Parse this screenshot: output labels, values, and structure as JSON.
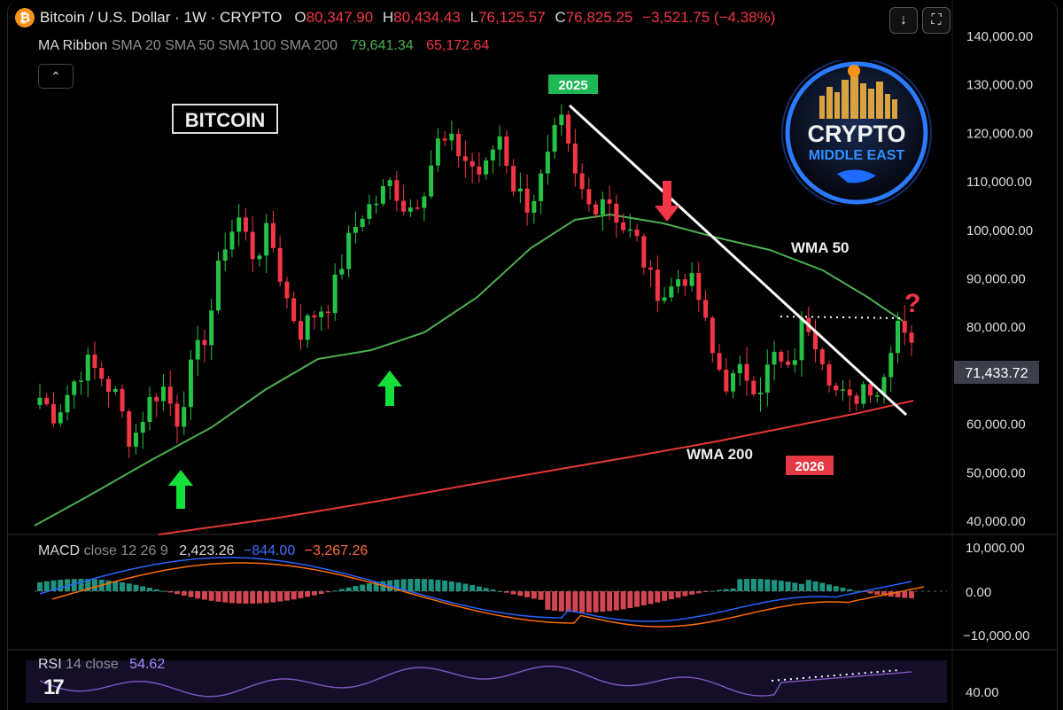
{
  "header": {
    "symbol_title": "Bitcoin / U.S. Dollar · 1W · CRYPTO",
    "btc_symbol": "₿",
    "ohlc": [
      {
        "key": "O",
        "value": "80,347.90"
      },
      {
        "key": "H",
        "value": "80,434.43"
      },
      {
        "key": "L",
        "value": "76,125.57"
      },
      {
        "key": "C",
        "value": "76,825.25"
      }
    ],
    "change": "−3,521.75 (−4.38%)",
    "download_icon": "↓",
    "fullscreen_icon": "⛶"
  },
  "ma_ribbon": {
    "label": "MA Ribbon",
    "params": "SMA 20 SMA 50 SMA 100 SMA 200",
    "value_green": "79,641.34",
    "value_red": "65,172.64"
  },
  "collapse_icon": "⌃",
  "macd": {
    "label": "MACD",
    "params": "close 12 26 9",
    "v1": "2,423.26",
    "v2": "−844.00",
    "v3": "−3,267.26"
  },
  "rsi": {
    "label": "RSI",
    "params": "14 close",
    "value": "54.62"
  },
  "tv_logo": "17",
  "logo": {
    "line1": "CRYPTO",
    "line2": "MIDDLE EAST"
  },
  "colors": {
    "up": "#26c245",
    "down": "#f23645",
    "wma50": "#4caf50",
    "wma200": "#e53935",
    "macd": "#2962ff",
    "signal": "#ff6d00",
    "rsi": "#7e57c2"
  },
  "chart_data": {
    "type": "candlestick",
    "timeframe": "1W",
    "price_axis": {
      "ticks": [
        "140,000.00",
        "130,000.00",
        "120,000.00",
        "110,000.00",
        "100,000.00",
        "90,000.00",
        "80,000.00",
        "70,000.00",
        "60,000.00",
        "50,000.00",
        "40,000.00"
      ],
      "ylim": [
        40000,
        140000
      ]
    },
    "current_price_label": "71,433.72",
    "annotations": {
      "title_box": "BITCOIN",
      "year_2025": "2025",
      "year_2026": "2026",
      "wma50": "WMA 50",
      "wma200": "WMA 200",
      "question": "?"
    },
    "close_anchors": [
      65500,
      61800,
      67500,
      72800,
      70000,
      65500,
      56000,
      64000,
      68000,
      61000,
      72500,
      80000,
      97000,
      102500,
      94500,
      100000,
      87000,
      79000,
      83000,
      85500,
      96000,
      103500,
      106000,
      110000,
      104000,
      108000,
      118000,
      117500,
      114000,
      111000,
      120500,
      109000,
      105000,
      112000,
      123000,
      110500,
      104500,
      108000,
      101000,
      98000,
      89000,
      86500,
      91500,
      87000,
      74000,
      68000,
      71000,
      67500,
      74000,
      70000,
      82500,
      76000,
      67000,
      64000,
      69000,
      66500,
      82500,
      78500
    ],
    "macd_axis": {
      "ticks": [
        "10,000.00",
        "0.00",
        "−10,000.00"
      ]
    },
    "rsi_axis": {
      "ticks": [
        "40.00"
      ]
    }
  }
}
